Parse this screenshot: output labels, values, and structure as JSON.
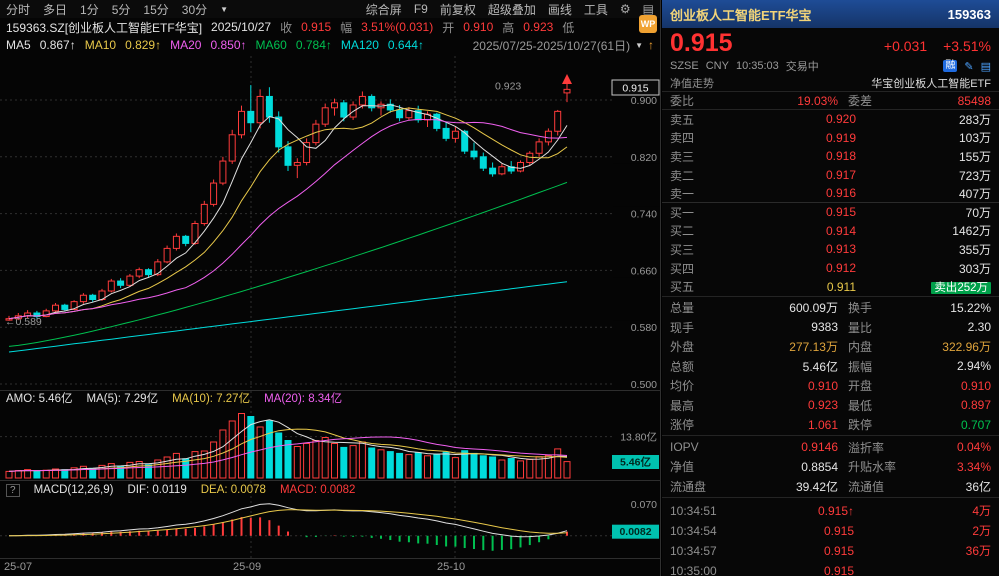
{
  "colors": {
    "up": "#ff3b3b",
    "down": "#00dcdc",
    "green": "#00c050",
    "yellow": "#e8c84a",
    "magenta": "#f060f0",
    "amber": "#dfa43c",
    "badge": "#00c2b0",
    "blue": "#1f6be0"
  },
  "toolbar": {
    "periods": [
      "分时",
      "多日",
      "1分",
      "5分",
      "15分",
      "30分"
    ],
    "tools": [
      "综合屏",
      "F9",
      "前复权",
      "超级叠加",
      "画线",
      "工具"
    ]
  },
  "info_bar": {
    "code_name": "159363.SZ[创业板人工智能ETF华宝]",
    "date": "2025/10/27",
    "close_label": "收",
    "close_value": "0.915",
    "range_label": "幅",
    "range_value": "3.51%(0.031)",
    "open_label": "开",
    "open_value": "0.910",
    "high_label": "高",
    "high_value": "0.923",
    "low_label": "低",
    "wp_badge": "WP"
  },
  "ma_bar": {
    "ma5_label": "MA5",
    "ma5": "0.867↑",
    "ma10_label": "MA10",
    "ma10": "0.829↑",
    "ma20_label": "MA20",
    "ma20": "0.850↑",
    "ma60_label": "MA60",
    "ma60": "0.784↑",
    "ma120_label": "MA120",
    "ma120": "0.644↑",
    "date_range": "2025/07/25-2025/10/27(61日)"
  },
  "volume_bar": {
    "amo_label": "AMO:",
    "amo": "5.46亿",
    "ma5_label": "MA(5):",
    "ma5": "7.29亿",
    "ma10_label": "MA(10):",
    "ma10": "7.27亿",
    "ma20_label": "MA(20):",
    "ma20": "8.34亿"
  },
  "macd_bar": {
    "help": "?",
    "params": "MACD(12,26,9)",
    "dif_label": "DIF:",
    "dif": "0.0119",
    "dea_label": "DEA:",
    "dea": "0.0078",
    "macd_label": "MACD:",
    "macd": "0.0082"
  },
  "x_axis": {
    "labels": [
      "25-07",
      "25-09",
      "25-10"
    ]
  },
  "chart_data": {
    "type": "candlestick",
    "symbol": "159363.SZ",
    "period": "daily",
    "visible_range": "2025/07/25-2025/10/27",
    "bars": 61,
    "price_gridlines": [
      0.9,
      0.82,
      0.74,
      0.66,
      0.58,
      0.5
    ],
    "current_price": 0.915,
    "period_high": 0.923,
    "period_low": 0.589,
    "volume_gridline_yi": 13.8,
    "volume_current_yi": 5.46,
    "macd": {
      "params": [
        12,
        26,
        9
      ],
      "dif": 0.0119,
      "dea": 0.0078,
      "macd": 0.0082,
      "axis_top": 0.07
    },
    "overlays": {
      "ma60_start": 0.553,
      "ma60_end": 0.784,
      "ma120_start": 0.545,
      "ma120_end": 0.644
    },
    "ohlcv": [
      [
        0.59,
        0.596,
        0.589,
        0.592,
        2.2
      ],
      [
        0.592,
        0.6,
        0.59,
        0.596,
        2.5
      ],
      [
        0.596,
        0.604,
        0.593,
        0.6,
        2.8
      ],
      [
        0.6,
        0.603,
        0.592,
        0.595,
        2.4
      ],
      [
        0.595,
        0.606,
        0.594,
        0.603,
        2.6
      ],
      [
        0.603,
        0.614,
        0.6,
        0.611,
        3.0
      ],
      [
        0.611,
        0.613,
        0.602,
        0.605,
        2.8
      ],
      [
        0.605,
        0.618,
        0.604,
        0.616,
        3.4
      ],
      [
        0.616,
        0.628,
        0.613,
        0.625,
        3.9
      ],
      [
        0.625,
        0.627,
        0.615,
        0.619,
        3.2
      ],
      [
        0.619,
        0.634,
        0.617,
        0.631,
        4.2
      ],
      [
        0.631,
        0.648,
        0.629,
        0.645,
        4.8
      ],
      [
        0.645,
        0.649,
        0.635,
        0.639,
        4.0
      ],
      [
        0.639,
        0.655,
        0.637,
        0.652,
        5.2
      ],
      [
        0.652,
        0.664,
        0.649,
        0.661,
        5.5
      ],
      [
        0.661,
        0.663,
        0.65,
        0.654,
        4.4
      ],
      [
        0.654,
        0.676,
        0.652,
        0.672,
        6.0
      ],
      [
        0.672,
        0.695,
        0.67,
        0.691,
        7.0
      ],
      [
        0.691,
        0.712,
        0.688,
        0.708,
        8.2
      ],
      [
        0.708,
        0.71,
        0.694,
        0.698,
        6.4
      ],
      [
        0.698,
        0.73,
        0.696,
        0.726,
        8.8
      ],
      [
        0.726,
        0.758,
        0.723,
        0.753,
        9.0
      ],
      [
        0.753,
        0.788,
        0.75,
        0.783,
        12.0
      ],
      [
        0.783,
        0.82,
        0.78,
        0.814,
        16.0
      ],
      [
        0.814,
        0.858,
        0.81,
        0.851,
        19.0
      ],
      [
        0.851,
        0.892,
        0.846,
        0.884,
        21.5
      ],
      [
        0.884,
        0.921,
        0.855,
        0.868,
        20.5
      ],
      [
        0.868,
        0.915,
        0.86,
        0.905,
        17.0
      ],
      [
        0.905,
        0.918,
        0.868,
        0.876,
        19.0
      ],
      [
        0.876,
        0.884,
        0.826,
        0.834,
        15.0
      ],
      [
        0.834,
        0.842,
        0.8,
        0.808,
        12.5
      ],
      [
        0.808,
        0.818,
        0.79,
        0.812,
        10.5
      ],
      [
        0.812,
        0.846,
        0.808,
        0.84,
        11.5
      ],
      [
        0.84,
        0.872,
        0.836,
        0.866,
        12.5
      ],
      [
        0.866,
        0.895,
        0.862,
        0.889,
        13.5
      ],
      [
        0.889,
        0.902,
        0.878,
        0.896,
        11.5
      ],
      [
        0.896,
        0.9,
        0.87,
        0.876,
        10.2
      ],
      [
        0.876,
        0.898,
        0.872,
        0.893,
        10.8
      ],
      [
        0.893,
        0.912,
        0.888,
        0.905,
        12.0
      ],
      [
        0.905,
        0.908,
        0.884,
        0.889,
        10.0
      ],
      [
        0.889,
        0.898,
        0.878,
        0.894,
        9.4
      ],
      [
        0.894,
        0.901,
        0.882,
        0.886,
        8.8
      ],
      [
        0.886,
        0.893,
        0.87,
        0.875,
        8.2
      ],
      [
        0.875,
        0.89,
        0.872,
        0.885,
        7.8
      ],
      [
        0.885,
        0.892,
        0.868,
        0.872,
        8.4
      ],
      [
        0.872,
        0.884,
        0.862,
        0.88,
        7.4
      ],
      [
        0.88,
        0.882,
        0.856,
        0.86,
        8.0
      ],
      [
        0.86,
        0.87,
        0.842,
        0.846,
        8.6
      ],
      [
        0.846,
        0.862,
        0.84,
        0.856,
        6.8
      ],
      [
        0.856,
        0.858,
        0.824,
        0.828,
        9.1
      ],
      [
        0.828,
        0.84,
        0.816,
        0.82,
        8.2
      ],
      [
        0.82,
        0.826,
        0.8,
        0.804,
        7.4
      ],
      [
        0.804,
        0.812,
        0.792,
        0.796,
        7.0
      ],
      [
        0.796,
        0.81,
        0.794,
        0.806,
        6.0
      ],
      [
        0.806,
        0.814,
        0.796,
        0.8,
        6.5
      ],
      [
        0.8,
        0.815,
        0.798,
        0.812,
        5.7
      ],
      [
        0.812,
        0.828,
        0.808,
        0.825,
        6.2
      ],
      [
        0.825,
        0.846,
        0.82,
        0.841,
        7.1
      ],
      [
        0.841,
        0.86,
        0.836,
        0.856,
        7.5
      ],
      [
        0.856,
        0.886,
        0.85,
        0.884,
        9.7
      ],
      [
        0.91,
        0.923,
        0.897,
        0.915,
        5.46
      ]
    ]
  },
  "quote": {
    "title": "创业板人工智能ETF华宝",
    "code": "159363",
    "last": "0.915",
    "change": "+0.031",
    "change_pct": "+3.51%",
    "exchange": "SZSE",
    "currency": "CNY",
    "time": "10:35:03",
    "status": "交易中",
    "margin_badge": "融",
    "nav_tab": "净值走势",
    "fund_name": "华宝创业板人工智能ETF",
    "weibi_label": "委比",
    "weibi": "19.03%",
    "weicha_label": "委差",
    "weicha": "85498",
    "asks": [
      {
        "label": "卖五",
        "price": "0.920",
        "vol": "283万"
      },
      {
        "label": "卖四",
        "price": "0.919",
        "vol": "103万"
      },
      {
        "label": "卖三",
        "price": "0.918",
        "vol": "155万"
      },
      {
        "label": "卖二",
        "price": "0.917",
        "vol": "723万"
      },
      {
        "label": "卖一",
        "price": "0.916",
        "vol": "407万"
      }
    ],
    "bids": [
      {
        "label": "买一",
        "price": "0.915",
        "vol": "70万"
      },
      {
        "label": "买二",
        "price": "0.914",
        "vol": "1462万"
      },
      {
        "label": "买三",
        "price": "0.913",
        "vol": "355万"
      },
      {
        "label": "买四",
        "price": "0.912",
        "vol": "303万"
      },
      {
        "label": "买五",
        "price": "0.911",
        "vol": ""
      }
    ],
    "flash": {
      "text": "卖出",
      "vol": "252万"
    },
    "stats": [
      {
        "l1": "总量",
        "v1": "600.09万",
        "l2": "换手",
        "v2": "15.22%"
      },
      {
        "l1": "现手",
        "v1": "9383",
        "l2": "量比",
        "v2": "2.30"
      },
      {
        "l1": "外盘",
        "v1": "277.13万",
        "l2": "内盘",
        "v2": "322.96万"
      },
      {
        "l1": "总额",
        "v1": "5.46亿",
        "l2": "振幅",
        "v2": "2.94%"
      },
      {
        "l1": "均价",
        "v1": "0.910",
        "l2": "开盘",
        "v2": "0.910"
      },
      {
        "l1": "最高",
        "v1": "0.923",
        "l2": "最低",
        "v2": "0.897"
      },
      {
        "l1": "涨停",
        "v1": "1.061",
        "l2": "跌停",
        "v2": "0.707"
      }
    ],
    "iopv_rows": [
      {
        "l1": "IOPV",
        "v1": "0.9146",
        "l2": "溢折率",
        "v2": "0.04%"
      },
      {
        "l1": "净值",
        "v1": "0.8854",
        "l2": "升贴水率",
        "v2": "3.34%"
      },
      {
        "l1": "流通盘",
        "v1": "39.42亿",
        "l2": "流通值",
        "v2": "36亿"
      }
    ],
    "trades": [
      {
        "time": "10:34:51",
        "price": "0.915",
        "arrow": "↑",
        "vol": "4万"
      },
      {
        "time": "10:34:54",
        "price": "0.915",
        "arrow": "",
        "vol": "2万"
      },
      {
        "time": "10:34:57",
        "price": "0.915",
        "arrow": "",
        "vol": "36万"
      },
      {
        "time": "10:35:00",
        "price": "0.915",
        "arrow": "",
        "vol": ""
      }
    ]
  }
}
